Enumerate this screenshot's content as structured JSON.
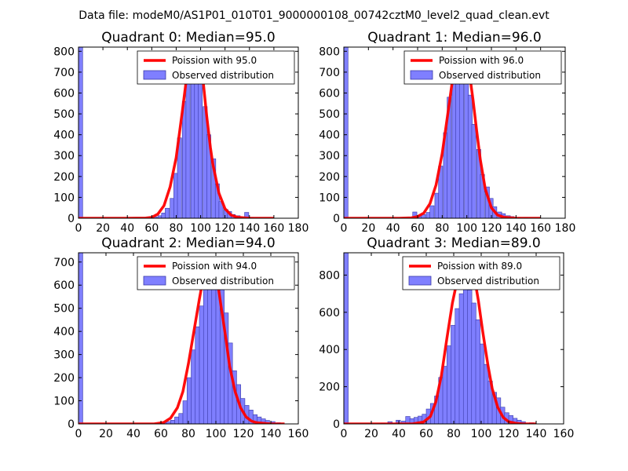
{
  "suptitle": "Data file: modeM0/AS1P01_010T01_9000000108_00742cztM0_level2_quad_clean.evt",
  "colors": {
    "bar_fill": "#7f7fff",
    "bar_edge": "#3a3aa8",
    "curve": "#ff0000",
    "axes": "#000000"
  },
  "chart_data": [
    {
      "type": "bar",
      "title": "Quadrant 0: Median=95.0",
      "xlim": [
        0,
        180
      ],
      "ylim": [
        0,
        820
      ],
      "xticks": [
        0,
        20,
        40,
        60,
        80,
        100,
        120,
        140,
        160,
        180
      ],
      "yticks": [
        0,
        100,
        200,
        300,
        400,
        500,
        600,
        700,
        800
      ],
      "bin_width": 3.4,
      "first_bin": {
        "x": 0,
        "value": 820
      },
      "bars": [
        [
          54,
          2
        ],
        [
          58,
          4
        ],
        [
          61,
          6
        ],
        [
          65,
          12
        ],
        [
          68,
          25
        ],
        [
          71,
          48
        ],
        [
          75,
          95
        ],
        [
          78,
          215
        ],
        [
          81,
          385
        ],
        [
          85,
          560
        ],
        [
          88,
          710
        ],
        [
          92,
          745
        ],
        [
          95,
          730
        ],
        [
          98,
          650
        ],
        [
          102,
          535
        ],
        [
          105,
          400
        ],
        [
          109,
          285
        ],
        [
          112,
          165
        ],
        [
          115,
          80
        ],
        [
          119,
          42
        ],
        [
          122,
          32
        ],
        [
          125,
          18
        ],
        [
          129,
          12
        ],
        [
          132,
          6
        ],
        [
          136,
          28
        ],
        [
          140,
          4
        ],
        [
          145,
          2
        ]
      ],
      "curve": {
        "label": "Poission with 95.0",
        "points": [
          [
            0,
            0
          ],
          [
            40,
            0
          ],
          [
            55,
            1
          ],
          [
            60,
            4
          ],
          [
            65,
            20
          ],
          [
            70,
            60
          ],
          [
            75,
            150
          ],
          [
            80,
            290
          ],
          [
            85,
            510
          ],
          [
            88,
            650
          ],
          [
            91,
            750
          ],
          [
            93,
            785
          ],
          [
            95,
            790
          ],
          [
            97,
            785
          ],
          [
            99,
            760
          ],
          [
            102,
            660
          ],
          [
            105,
            490
          ],
          [
            108,
            340
          ],
          [
            110,
            260
          ],
          [
            115,
            120
          ],
          [
            120,
            45
          ],
          [
            125,
            15
          ],
          [
            130,
            5
          ],
          [
            140,
            0
          ],
          [
            160,
            0
          ]
        ]
      },
      "legend": {
        "curve_label": "Poission with 95.0",
        "bar_label": "Observed distribution",
        "loc": "upper right"
      }
    },
    {
      "type": "bar",
      "title": "Quadrant 1: Median=96.0",
      "xlim": [
        0,
        180
      ],
      "ylim": [
        0,
        820
      ],
      "xticks": [
        0,
        20,
        40,
        60,
        80,
        100,
        120,
        140,
        160,
        180
      ],
      "yticks": [
        0,
        100,
        200,
        300,
        400,
        500,
        600,
        700,
        800
      ],
      "bin_width": 3.4,
      "first_bin": {
        "x": 0,
        "value": 820
      },
      "bars": [
        [
          56,
          30
        ],
        [
          60,
          12
        ],
        [
          63,
          18
        ],
        [
          67,
          28
        ],
        [
          70,
          60
        ],
        [
          74,
          120
        ],
        [
          77,
          250
        ],
        [
          81,
          410
        ],
        [
          84,
          580
        ],
        [
          88,
          720
        ],
        [
          91,
          780
        ],
        [
          94,
          760
        ],
        [
          98,
          700
        ],
        [
          101,
          590
        ],
        [
          104,
          450
        ],
        [
          108,
          330
        ],
        [
          111,
          210
        ],
        [
          115,
          150
        ],
        [
          118,
          95
        ],
        [
          121,
          55
        ],
        [
          125,
          30
        ],
        [
          128,
          22
        ],
        [
          132,
          12
        ],
        [
          135,
          8
        ],
        [
          140,
          4
        ],
        [
          146,
          2
        ]
      ],
      "curve": {
        "label": "Poission with 96.0",
        "points": [
          [
            0,
            0
          ],
          [
            45,
            0
          ],
          [
            55,
            2
          ],
          [
            60,
            8
          ],
          [
            65,
            25
          ],
          [
            70,
            70
          ],
          [
            75,
            160
          ],
          [
            80,
            310
          ],
          [
            85,
            520
          ],
          [
            89,
            690
          ],
          [
            92,
            770
          ],
          [
            95,
            790
          ],
          [
            97,
            790
          ],
          [
            99,
            770
          ],
          [
            102,
            700
          ],
          [
            105,
            570
          ],
          [
            108,
            420
          ],
          [
            111,
            280
          ],
          [
            115,
            140
          ],
          [
            120,
            50
          ],
          [
            125,
            15
          ],
          [
            130,
            5
          ],
          [
            140,
            0
          ],
          [
            160,
            0
          ]
        ]
      },
      "legend": {
        "curve_label": "Poission with 96.0",
        "bar_label": "Observed distribution",
        "loc": "upper right"
      }
    },
    {
      "type": "bar",
      "title": "Quadrant 2: Median=94.0",
      "xlim": [
        0,
        160
      ],
      "ylim": [
        0,
        740
      ],
      "xticks": [
        0,
        20,
        40,
        60,
        80,
        100,
        120,
        140,
        160
      ],
      "yticks": [
        0,
        100,
        200,
        300,
        400,
        500,
        600,
        700
      ],
      "bin_width": 3.1,
      "first_bin": {
        "x": 0,
        "value": 740
      },
      "bars": [
        [
          61,
          8
        ],
        [
          64,
          10
        ],
        [
          67,
          16
        ],
        [
          70,
          30
        ],
        [
          73,
          45
        ],
        [
          76,
          100
        ],
        [
          79,
          200
        ],
        [
          82,
          320
        ],
        [
          85,
          420
        ],
        [
          88,
          510
        ],
        [
          91,
          600
        ],
        [
          94,
          660
        ],
        [
          97,
          690
        ],
        [
          100,
          660
        ],
        [
          103,
          590
        ],
        [
          106,
          480
        ],
        [
          109,
          350
        ],
        [
          112,
          230
        ],
        [
          115,
          170
        ],
        [
          118,
          110
        ],
        [
          121,
          80
        ],
        [
          124,
          60
        ],
        [
          127,
          40
        ],
        [
          130,
          30
        ],
        [
          133,
          22
        ],
        [
          136,
          15
        ],
        [
          140,
          10
        ],
        [
          144,
          5
        ]
      ],
      "curve": {
        "label": "Poission with 94.0",
        "points": [
          [
            0,
            0
          ],
          [
            55,
            0
          ],
          [
            62,
            6
          ],
          [
            67,
            25
          ],
          [
            72,
            70
          ],
          [
            76,
            140
          ],
          [
            80,
            260
          ],
          [
            84,
            400
          ],
          [
            88,
            540
          ],
          [
            91,
            640
          ],
          [
            94,
            700
          ],
          [
            96,
            705
          ],
          [
            98,
            690
          ],
          [
            101,
            620
          ],
          [
            104,
            500
          ],
          [
            107,
            380
          ],
          [
            110,
            250
          ],
          [
            114,
            140
          ],
          [
            118,
            70
          ],
          [
            122,
            30
          ],
          [
            126,
            12
          ],
          [
            130,
            5
          ],
          [
            140,
            0
          ],
          [
            150,
            0
          ]
        ]
      },
      "legend": {
        "curve_label": "Poission with 94.0",
        "bar_label": "Observed distribution",
        "loc": "upper right"
      }
    },
    {
      "type": "bar",
      "title": "Quadrant 3: Median=89.0",
      "xlim": [
        0,
        160
      ],
      "ylim": [
        0,
        920
      ],
      "xticks": [
        0,
        20,
        40,
        60,
        80,
        100,
        120,
        140,
        160
      ],
      "yticks": [
        0,
        200,
        400,
        600,
        800
      ],
      "bin_width": 3.2,
      "first_bin": {
        "x": 0,
        "value": 920
      },
      "bars": [
        [
          27,
          5
        ],
        [
          32,
          12
        ],
        [
          38,
          20
        ],
        [
          42,
          15
        ],
        [
          45,
          40
        ],
        [
          48,
          28
        ],
        [
          51,
          35
        ],
        [
          54,
          42
        ],
        [
          57,
          52
        ],
        [
          60,
          80
        ],
        [
          63,
          110
        ],
        [
          66,
          150
        ],
        [
          69,
          250
        ],
        [
          72,
          310
        ],
        [
          75,
          420
        ],
        [
          78,
          530
        ],
        [
          81,
          620
        ],
        [
          84,
          700
        ],
        [
          87,
          750
        ],
        [
          90,
          720
        ],
        [
          93,
          650
        ],
        [
          96,
          560
        ],
        [
          99,
          430
        ],
        [
          102,
          320
        ],
        [
          105,
          230
        ],
        [
          108,
          170
        ],
        [
          111,
          140
        ],
        [
          114,
          90
        ],
        [
          117,
          60
        ],
        [
          120,
          45
        ],
        [
          123,
          30
        ],
        [
          126,
          20
        ],
        [
          129,
          12
        ],
        [
          135,
          6
        ]
      ],
      "curve": {
        "label": "Poission with 89.0",
        "points": [
          [
            0,
            0
          ],
          [
            50,
            0
          ],
          [
            58,
            10
          ],
          [
            63,
            40
          ],
          [
            67,
            120
          ],
          [
            71,
            260
          ],
          [
            75,
            460
          ],
          [
            79,
            650
          ],
          [
            83,
            790
          ],
          [
            87,
            870
          ],
          [
            89,
            880
          ],
          [
            92,
            860
          ],
          [
            95,
            790
          ],
          [
            98,
            660
          ],
          [
            101,
            500
          ],
          [
            105,
            310
          ],
          [
            108,
            190
          ],
          [
            112,
            90
          ],
          [
            116,
            35
          ],
          [
            120,
            12
          ],
          [
            125,
            4
          ],
          [
            130,
            0
          ],
          [
            140,
            0
          ]
        ]
      },
      "legend": {
        "curve_label": "Poission with 89.0",
        "bar_label": "Observed distribution",
        "loc": "upper right"
      }
    }
  ]
}
